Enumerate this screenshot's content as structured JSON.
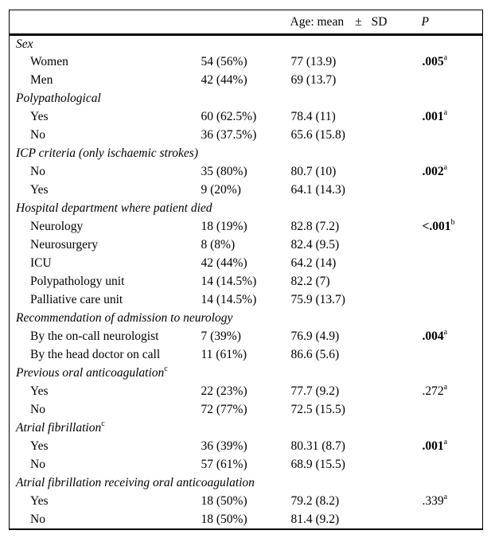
{
  "colors": {
    "text": "#000000",
    "background": "#ffffff",
    "rule": "#000000"
  },
  "table": {
    "header": {
      "age": "Age: mean",
      "plus_minus": "±",
      "sd": "SD",
      "p": "P"
    },
    "sections": [
      {
        "label": "Sex",
        "sup": "",
        "rows": [
          {
            "label": "Women",
            "count": "54 (56%)",
            "age": "77 (13.9)",
            "p": ".005",
            "p_sup": "a",
            "p_bold": true
          },
          {
            "label": "Men",
            "count": "42 (44%)",
            "age": "69 (13.7)",
            "p": "",
            "p_sup": "",
            "p_bold": false
          }
        ]
      },
      {
        "label": "Polypathological",
        "sup": "",
        "rows": [
          {
            "label": "Yes",
            "count": "60 (62.5%)",
            "age": "78.4 (11)",
            "p": ".001",
            "p_sup": "a",
            "p_bold": true
          },
          {
            "label": "No",
            "count": "36 (37.5%)",
            "age": "65.6 (15.8)",
            "p": "",
            "p_sup": "",
            "p_bold": false
          }
        ]
      },
      {
        "label": "ICP criteria (only ischaemic strokes)",
        "sup": "",
        "rows": [
          {
            "label": "No",
            "count": "35 (80%)",
            "age": "80.7 (10)",
            "p": ".002",
            "p_sup": "a",
            "p_bold": true
          },
          {
            "label": "Yes",
            "count": "9 (20%)",
            "age": "64.1 (14.3)",
            "p": "",
            "p_sup": "",
            "p_bold": false
          }
        ]
      },
      {
        "label": "Hospital department where patient died",
        "sup": "",
        "rows": [
          {
            "label": "Neurology",
            "count": "18 (19%)",
            "age": "82.8 (7.2)",
            "p": "<.001",
            "p_sup": "b",
            "p_bold": true
          },
          {
            "label": "Neurosurgery",
            "count": "8 (8%)",
            "age": "82.4 (9.5)",
            "p": "",
            "p_sup": "",
            "p_bold": false
          },
          {
            "label": "ICU",
            "count": "42 (44%)",
            "age": "64.2 (14)",
            "p": "",
            "p_sup": "",
            "p_bold": false
          },
          {
            "label": "Polypathology unit",
            "count": "14 (14.5%)",
            "age": "82.2 (7)",
            "p": "",
            "p_sup": "",
            "p_bold": false
          },
          {
            "label": "Palliative care unit",
            "count": "14 (14.5%)",
            "age": "75.9 (13.7)",
            "p": "",
            "p_sup": "",
            "p_bold": false
          }
        ]
      },
      {
        "label": "Recommendation of admission to neurology",
        "sup": "",
        "rows": [
          {
            "label": "By the on-call neurologist",
            "count": "7 (39%)",
            "age": "76.9 (4.9)",
            "p": ".004",
            "p_sup": "a",
            "p_bold": true
          },
          {
            "label": "By the head doctor on call",
            "count": "11 (61%)",
            "age": "86.6 (5.6)",
            "p": "",
            "p_sup": "",
            "p_bold": false
          }
        ]
      },
      {
        "label": "Previous oral anticoagulation",
        "sup": "c",
        "rows": [
          {
            "label": "Yes",
            "count": "22 (23%)",
            "age": "77.7 (9.2)",
            "p": ".272",
            "p_sup": "a",
            "p_bold": false
          },
          {
            "label": "No",
            "count": "72 (77%)",
            "age": "72.5 (15.5)",
            "p": "",
            "p_sup": "",
            "p_bold": false
          }
        ]
      },
      {
        "label": "Atrial fibrillation",
        "sup": "c",
        "rows": [
          {
            "label": "Yes",
            "count": "36 (39%)",
            "age": "80.31 (8.7)",
            "p": ".001",
            "p_sup": "a",
            "p_bold": true
          },
          {
            "label": "No",
            "count": "57 (61%)",
            "age": "68.9 (15.5)",
            "p": "",
            "p_sup": "",
            "p_bold": false
          }
        ]
      },
      {
        "label": "Atrial fibrillation receiving oral anticoagulation",
        "sup": "",
        "rows": [
          {
            "label": "Yes",
            "count": "18 (50%)",
            "age": "79.2 (8.2)",
            "p": ".339",
            "p_sup": "a",
            "p_bold": false
          },
          {
            "label": "No",
            "count": "18 (50%)",
            "age": "81.4 (9.2)",
            "p": "",
            "p_sup": "",
            "p_bold": false
          }
        ]
      }
    ]
  }
}
